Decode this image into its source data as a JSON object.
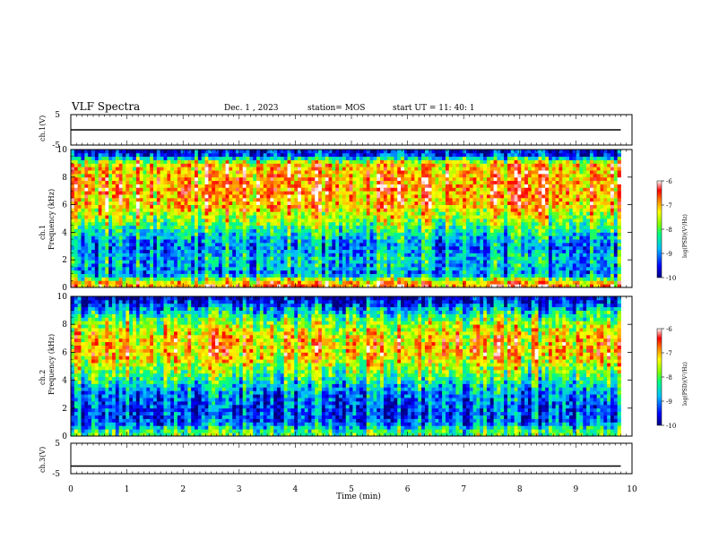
{
  "header": {
    "title": "VLF Spectra",
    "date": "Dec. 1 , 2023",
    "station": "station= MOS",
    "start": "start  UT =   11: 40: 1"
  },
  "chart_data": [
    {
      "type": "line",
      "name": "ch1-waveform",
      "ylabel": "ch.1(V)",
      "ylim": [
        -5,
        5
      ],
      "yticks": [
        "5",
        "-5"
      ],
      "xlim": [
        0,
        10
      ],
      "series": [
        {
          "x": [
            0,
            9.8
          ],
          "y": [
            0,
            0
          ]
        }
      ]
    },
    {
      "type": "heatmap",
      "name": "ch1-spectrogram",
      "ylabel_top": "ch.1",
      "ylabel": "Frequency (kHz)",
      "ylim": [
        0,
        10
      ],
      "yticks": [
        "0",
        "2",
        "4",
        "6",
        "8",
        "10"
      ],
      "xlim": [
        0,
        9.8
      ],
      "colorbar": {
        "label": "log(PSD)(V²/Hz)",
        "ticks": [
          "-6",
          "-7",
          "-8",
          "-9",
          "-10"
        ],
        "range": [
          -10,
          -6
        ]
      },
      "intensity_profile": [
        {
          "f": 0.3,
          "v": -6.8
        },
        {
          "f": 1.0,
          "v": -9.0
        },
        {
          "f": 2.0,
          "v": -8.6
        },
        {
          "f": 3.0,
          "v": -9.0
        },
        {
          "f": 4.0,
          "v": -8.4
        },
        {
          "f": 5.0,
          "v": -7.6
        },
        {
          "f": 6.0,
          "v": -7.0
        },
        {
          "f": 7.0,
          "v": -6.8
        },
        {
          "f": 8.0,
          "v": -6.9
        },
        {
          "f": 9.0,
          "v": -7.1
        },
        {
          "f": 9.7,
          "v": -9.6
        }
      ]
    },
    {
      "type": "heatmap",
      "name": "ch2-spectrogram",
      "ylabel_top": "ch.2",
      "ylabel": "Frequency (kHz)",
      "ylim": [
        0,
        10
      ],
      "yticks": [
        "0",
        "2",
        "4",
        "6",
        "8",
        "10"
      ],
      "xlim": [
        0,
        9.8
      ],
      "colorbar": {
        "label": "log(PSD)(V²/Hz)",
        "ticks": [
          "-6",
          "-7",
          "-8",
          "-9",
          "-10"
        ],
        "range": [
          -10,
          -6
        ]
      },
      "intensity_profile": [
        {
          "f": 0.3,
          "v": -8.0
        },
        {
          "f": 1.0,
          "v": -9.2
        },
        {
          "f": 2.0,
          "v": -9.3
        },
        {
          "f": 3.0,
          "v": -9.0
        },
        {
          "f": 4.0,
          "v": -8.3
        },
        {
          "f": 5.0,
          "v": -7.6
        },
        {
          "f": 6.0,
          "v": -7.0
        },
        {
          "f": 7.0,
          "v": -7.1
        },
        {
          "f": 8.0,
          "v": -7.6
        },
        {
          "f": 9.0,
          "v": -8.6
        },
        {
          "f": 9.7,
          "v": -9.7
        }
      ]
    },
    {
      "type": "line",
      "name": "ch3-waveform",
      "ylabel": "ch.3(V)",
      "ylim": [
        -5,
        5
      ],
      "yticks": [
        "5",
        "-5"
      ],
      "xlim": [
        0,
        10
      ],
      "xlabel": "Time (min)",
      "xticks": [
        "0",
        "1",
        "2",
        "3",
        "4",
        "5",
        "6",
        "7",
        "8",
        "9",
        "10"
      ],
      "series": [
        {
          "x": [
            0,
            9.8
          ],
          "y": [
            -2.5,
            -2.5
          ]
        }
      ]
    }
  ]
}
